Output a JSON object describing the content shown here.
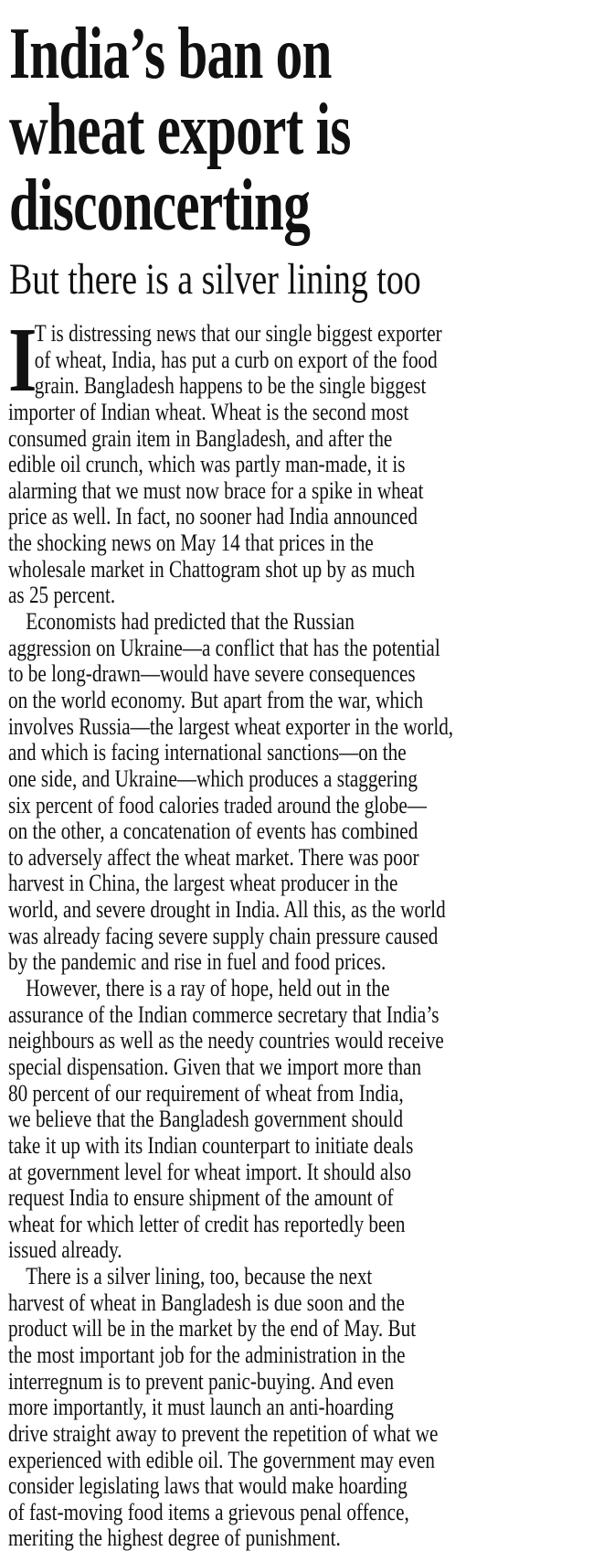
{
  "headline": {
    "lines": [
      "India’s ban on",
      "wheat export is",
      "disconcerting"
    ]
  },
  "subhead": "But there is a silver lining too",
  "article": {
    "drop_cap": "I",
    "paragraphs": [
      [
        "T is distressing news that our single biggest exporter",
        "of wheat, India, has put a curb on export of the food",
        "grain. Bangladesh happens to be the single biggest",
        "importer of Indian wheat. Wheat is the second most",
        "consumed grain item in Bangladesh, and after the",
        "edible oil crunch, which was partly man-made, it is",
        "alarming that we must now brace for a spike in wheat",
        "price as well. In fact, no sooner had India announced",
        "the shocking news on May 14 that prices in the",
        "wholesale market in Chattogram shot up by as much",
        "as 25 percent."
      ],
      [
        "Economists had predicted that the Russian",
        "aggression on Ukraine—a conflict that has the potential",
        "to be long-drawn—would have severe consequences",
        "on the world economy. But apart from the war, which",
        "involves Russia—the largest wheat exporter in the world,",
        "and which is facing international sanctions—on the",
        "one side, and Ukraine—which produces a staggering",
        "six percent of food calories traded around the globe—",
        "on the other, a concatenation of events has combined",
        "to adversely affect the wheat market. There was poor",
        "harvest in China, the largest wheat producer in the",
        "world, and severe drought in India. All this, as the world",
        "was already facing severe supply chain pressure caused",
        "by the pandemic and rise in fuel and food prices."
      ],
      [
        "However, there is a ray of hope, held out in the",
        "assurance of the Indian commerce secretary that India’s",
        "neighbours as well as the needy countries would receive",
        "special dispensation. Given that we import more than",
        "80 percent of our requirement of wheat from India,",
        "we believe that the Bangladesh government should",
        "take it up with its Indian counterpart to initiate deals",
        "at government level for wheat import. It should also",
        "request India to ensure shipment of the amount of",
        "wheat for which letter of credit has reportedly been",
        "issued already."
      ],
      [
        "There is a silver lining, too, because the next",
        "harvest of wheat in Bangladesh is due soon and the",
        "product will be in the market by the end of May. But",
        "the most important job for the administration in the",
        "interregnum is to prevent panic-buying. And even",
        "more importantly, it must launch an anti-hoarding",
        "drive straight away to prevent the repetition of what we",
        "experienced with edible oil. The government may even",
        "consider legislating laws that would make hoarding",
        "of fast-moving food items a grievous penal offence,",
        "meriting the highest degree of punishment."
      ]
    ]
  }
}
